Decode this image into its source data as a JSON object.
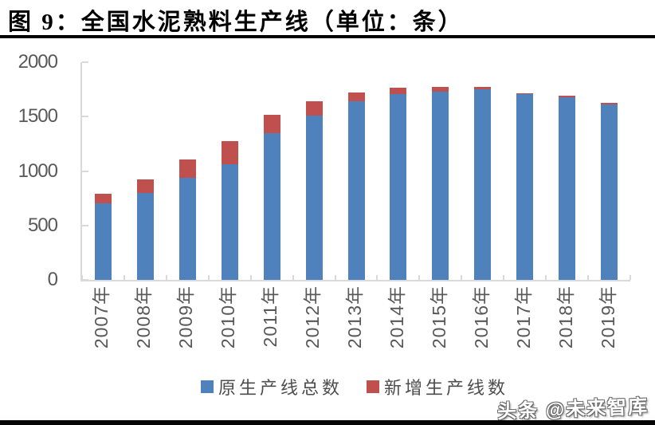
{
  "figure": {
    "title": "图 9：全国水泥熟料生产线（单位：条）",
    "watermark": "头条 @未来智库"
  },
  "chart_data": {
    "type": "bar",
    "stacked": true,
    "title": "全国水泥熟料生产线（单位：条）",
    "xlabel": "",
    "ylabel": "",
    "categories": [
      "2007年",
      "2008年",
      "2009年",
      "2010年",
      "2011年",
      "2012年",
      "2013年",
      "2014年",
      "2015年",
      "2016年",
      "2017年",
      "2018年",
      "2019年"
    ],
    "series": [
      {
        "name": "原生产线总数",
        "color": "#4F81BD",
        "values": [
          705,
          795,
          935,
          1065,
          1345,
          1510,
          1640,
          1705,
          1730,
          1750,
          1708,
          1677,
          1614
        ]
      },
      {
        "name": "新增生产线数",
        "color": "#C0504D",
        "values": [
          90,
          125,
          175,
          210,
          170,
          130,
          80,
          60,
          40,
          25,
          10,
          12,
          12
        ]
      }
    ],
    "ylim": [
      0,
      2000
    ],
    "yticks": [
      0,
      500,
      1000,
      1500,
      2000
    ],
    "grid": false,
    "legend_position": "bottom",
    "axis_color": "#D9D9D9",
    "tick_label_color": "#595959"
  }
}
